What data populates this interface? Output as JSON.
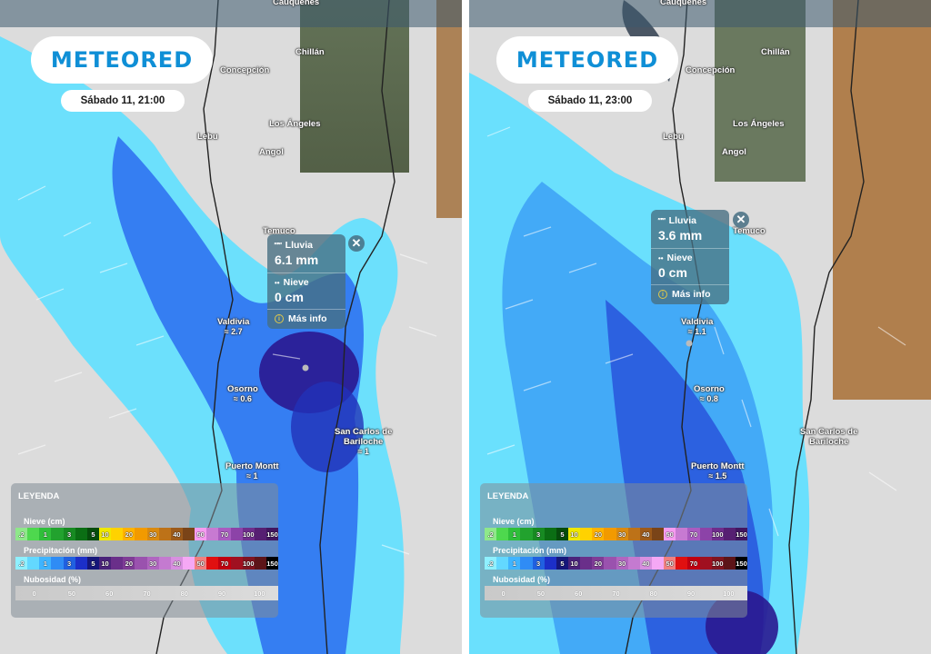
{
  "panels": [
    {
      "brand": "METEORED",
      "datetime": "Sábado 11, 21:00",
      "top_city": "Cauquenes",
      "cities": [
        {
          "name": "Chillán",
          "rain": ""
        },
        {
          "name": "Concepción",
          "rain": ""
        },
        {
          "name": "Los Ángeles",
          "rain": ""
        },
        {
          "name": "Lebu",
          "rain": ""
        },
        {
          "name": "Angol",
          "rain": ""
        },
        {
          "name": "Temuco",
          "rain": ""
        },
        {
          "name": "Valdivia",
          "rain": "≈ 2.7"
        },
        {
          "name": "Osorno",
          "rain": "≈ 0.6"
        },
        {
          "name": "San Carlos de",
          "rain": ""
        },
        {
          "name": "Bariloche",
          "rain": "≈ 1"
        },
        {
          "name": "Puerto Montt",
          "rain": "≈ 1"
        }
      ],
      "popup": {
        "rain_label": "Lluvia",
        "rain_value": "6.1 mm",
        "snow_label": "Nieve",
        "snow_value": "0 cm",
        "more_info": "Más info",
        "close": "✕"
      }
    },
    {
      "brand": "METEORED",
      "datetime": "Sábado 11, 23:00",
      "top_city": "Cauquenes",
      "cities": [
        {
          "name": "Chillán",
          "rain": ""
        },
        {
          "name": "Concepción",
          "rain": ""
        },
        {
          "name": "Los Ángeles",
          "rain": ""
        },
        {
          "name": "Lebu",
          "rain": ""
        },
        {
          "name": "Angol",
          "rain": ""
        },
        {
          "name": "Temuco",
          "rain": ""
        },
        {
          "name": "Valdivia",
          "rain": "≈ 1.1"
        },
        {
          "name": "Osorno",
          "rain": "≈ 0.8"
        },
        {
          "name": "San Carlos de",
          "rain": ""
        },
        {
          "name": "Bariloche",
          "rain": ""
        },
        {
          "name": "Puerto Montt",
          "rain": "≈ 1.5"
        }
      ],
      "popup": {
        "rain_label": "Lluvia",
        "rain_value": "3.6 mm",
        "snow_label": "Nieve",
        "snow_value": "0 cm",
        "more_info": "Más info",
        "close": "✕"
      }
    }
  ],
  "legend": {
    "title": "LEYENDA",
    "snow": {
      "label": "Nieve (cm)",
      "cells": [
        {
          "t": ".2",
          "c": "#8fe88a"
        },
        {
          "t": "",
          "c": "#4ed84e"
        },
        {
          "t": "1",
          "c": "#2fbf3a"
        },
        {
          "t": "",
          "c": "#22a22e"
        },
        {
          "t": "3",
          "c": "#178a22"
        },
        {
          "t": "",
          "c": "#0b6e14"
        },
        {
          "t": "5",
          "c": "#064c0c"
        },
        {
          "t": "10",
          "c": "#f0e800"
        },
        {
          "t": "",
          "c": "#ffd200"
        },
        {
          "t": "20",
          "c": "#ffb300"
        },
        {
          "t": "",
          "c": "#f29a00"
        },
        {
          "t": "30",
          "c": "#d98a10"
        },
        {
          "t": "",
          "c": "#bd7218"
        },
        {
          "t": "40",
          "c": "#9c5a1a"
        },
        {
          "t": "",
          "c": "#7a4418"
        },
        {
          "t": "50",
          "c": "#f59cf0"
        },
        {
          "t": "",
          "c": "#c77ad2"
        },
        {
          "t": "70",
          "c": "#a95bc0"
        },
        {
          "t": "",
          "c": "#8c43a8"
        },
        {
          "t": "100",
          "c": "#6f2d8c"
        },
        {
          "t": "",
          "c": "#561f72"
        },
        {
          "t": "150",
          "c": "#421660"
        }
      ]
    },
    "precip": {
      "label": "Precipitación (mm)",
      "cells": [
        {
          "t": ".2",
          "c": "#8ff0ff"
        },
        {
          "t": "",
          "c": "#63d8ff"
        },
        {
          "t": "1",
          "c": "#3fb4ff"
        },
        {
          "t": "",
          "c": "#2f8cf5"
        },
        {
          "t": "3",
          "c": "#2060e0"
        },
        {
          "t": "",
          "c": "#1c2fc8"
        },
        {
          "t": "5",
          "c": "#15167a"
        },
        {
          "t": "10",
          "c": "#4a237a"
        },
        {
          "t": "",
          "c": "#6a2f8a"
        },
        {
          "t": "20",
          "c": "#7f3c96"
        },
        {
          "t": "",
          "c": "#9a52ae"
        },
        {
          "t": "30",
          "c": "#b066c0"
        },
        {
          "t": "",
          "c": "#c47ad0"
        },
        {
          "t": "40",
          "c": "#d890e0"
        },
        {
          "t": "",
          "c": "#f5a8f5"
        },
        {
          "t": "50",
          "c": "#f08080"
        },
        {
          "t": "",
          "c": "#e01010"
        },
        {
          "t": "70",
          "c": "#c00010"
        },
        {
          "t": "",
          "c": "#a01020"
        },
        {
          "t": "100",
          "c": "#801420"
        },
        {
          "t": "",
          "c": "#5c1418"
        },
        {
          "t": "150",
          "c": "#000000"
        }
      ]
    },
    "clouds": {
      "label": "Nubosidad (%)",
      "ticks": [
        "0",
        "50",
        "60",
        "70",
        "80",
        "90",
        "100"
      ]
    }
  }
}
